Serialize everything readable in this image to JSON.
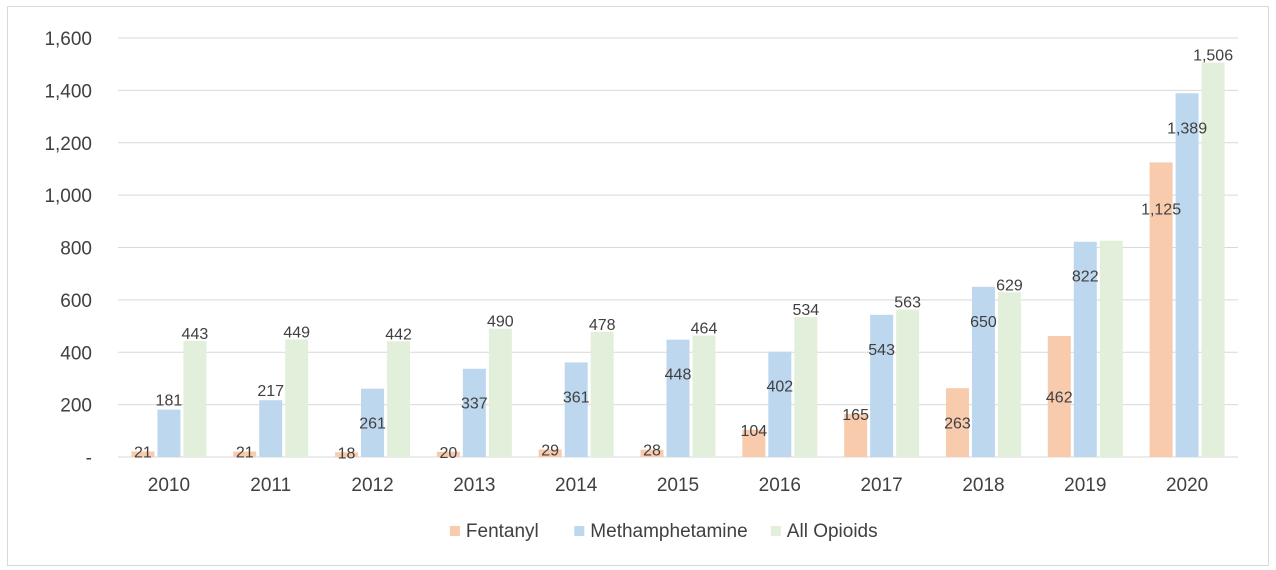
{
  "chart_data": {
    "type": "bar",
    "categories": [
      "2010",
      "2011",
      "2012",
      "2013",
      "2014",
      "2015",
      "2016",
      "2017",
      "2018",
      "2019",
      "2020"
    ],
    "series": [
      {
        "name": "Fentanyl",
        "color": "#f8cbad",
        "values": [
          21,
          21,
          18,
          20,
          29,
          28,
          104,
          165,
          263,
          462,
          1125
        ],
        "labels": [
          "21",
          "21",
          "18",
          "20",
          "29",
          "28",
          "104",
          "165",
          "263",
          "462",
          "1,125"
        ]
      },
      {
        "name": "Methamphetamine",
        "color": "#bdd7ee",
        "values": [
          181,
          217,
          261,
          337,
          361,
          448,
          402,
          543,
          650,
          822,
          1389
        ],
        "labels": [
          "181",
          "217",
          "261",
          "337",
          "361",
          "448",
          "402",
          "543",
          "650",
          "822",
          "1,389"
        ]
      },
      {
        "name": "All Opioids",
        "color": "#e2efda",
        "values": [
          443,
          449,
          442,
          490,
          478,
          464,
          534,
          563,
          629,
          826,
          1506
        ],
        "labels": [
          "443",
          "449",
          "442",
          "490",
          "478",
          "464",
          "534",
          "563",
          "629",
          "",
          "1,506"
        ]
      }
    ],
    "yticks": [
      {
        "value": 0,
        "label": "-"
      },
      {
        "value": 200,
        "label": "200"
      },
      {
        "value": 400,
        "label": "400"
      },
      {
        "value": 600,
        "label": "600"
      },
      {
        "value": 800,
        "label": "800"
      },
      {
        "value": 1000,
        "label": "1,000"
      },
      {
        "value": 1200,
        "label": "1,200"
      },
      {
        "value": 1400,
        "label": "1,400"
      },
      {
        "value": 1600,
        "label": "1,600"
      }
    ],
    "ylim": [
      0,
      1600
    ],
    "grid": true,
    "legend_position": "bottom",
    "title": "",
    "xlabel": "",
    "ylabel": ""
  }
}
